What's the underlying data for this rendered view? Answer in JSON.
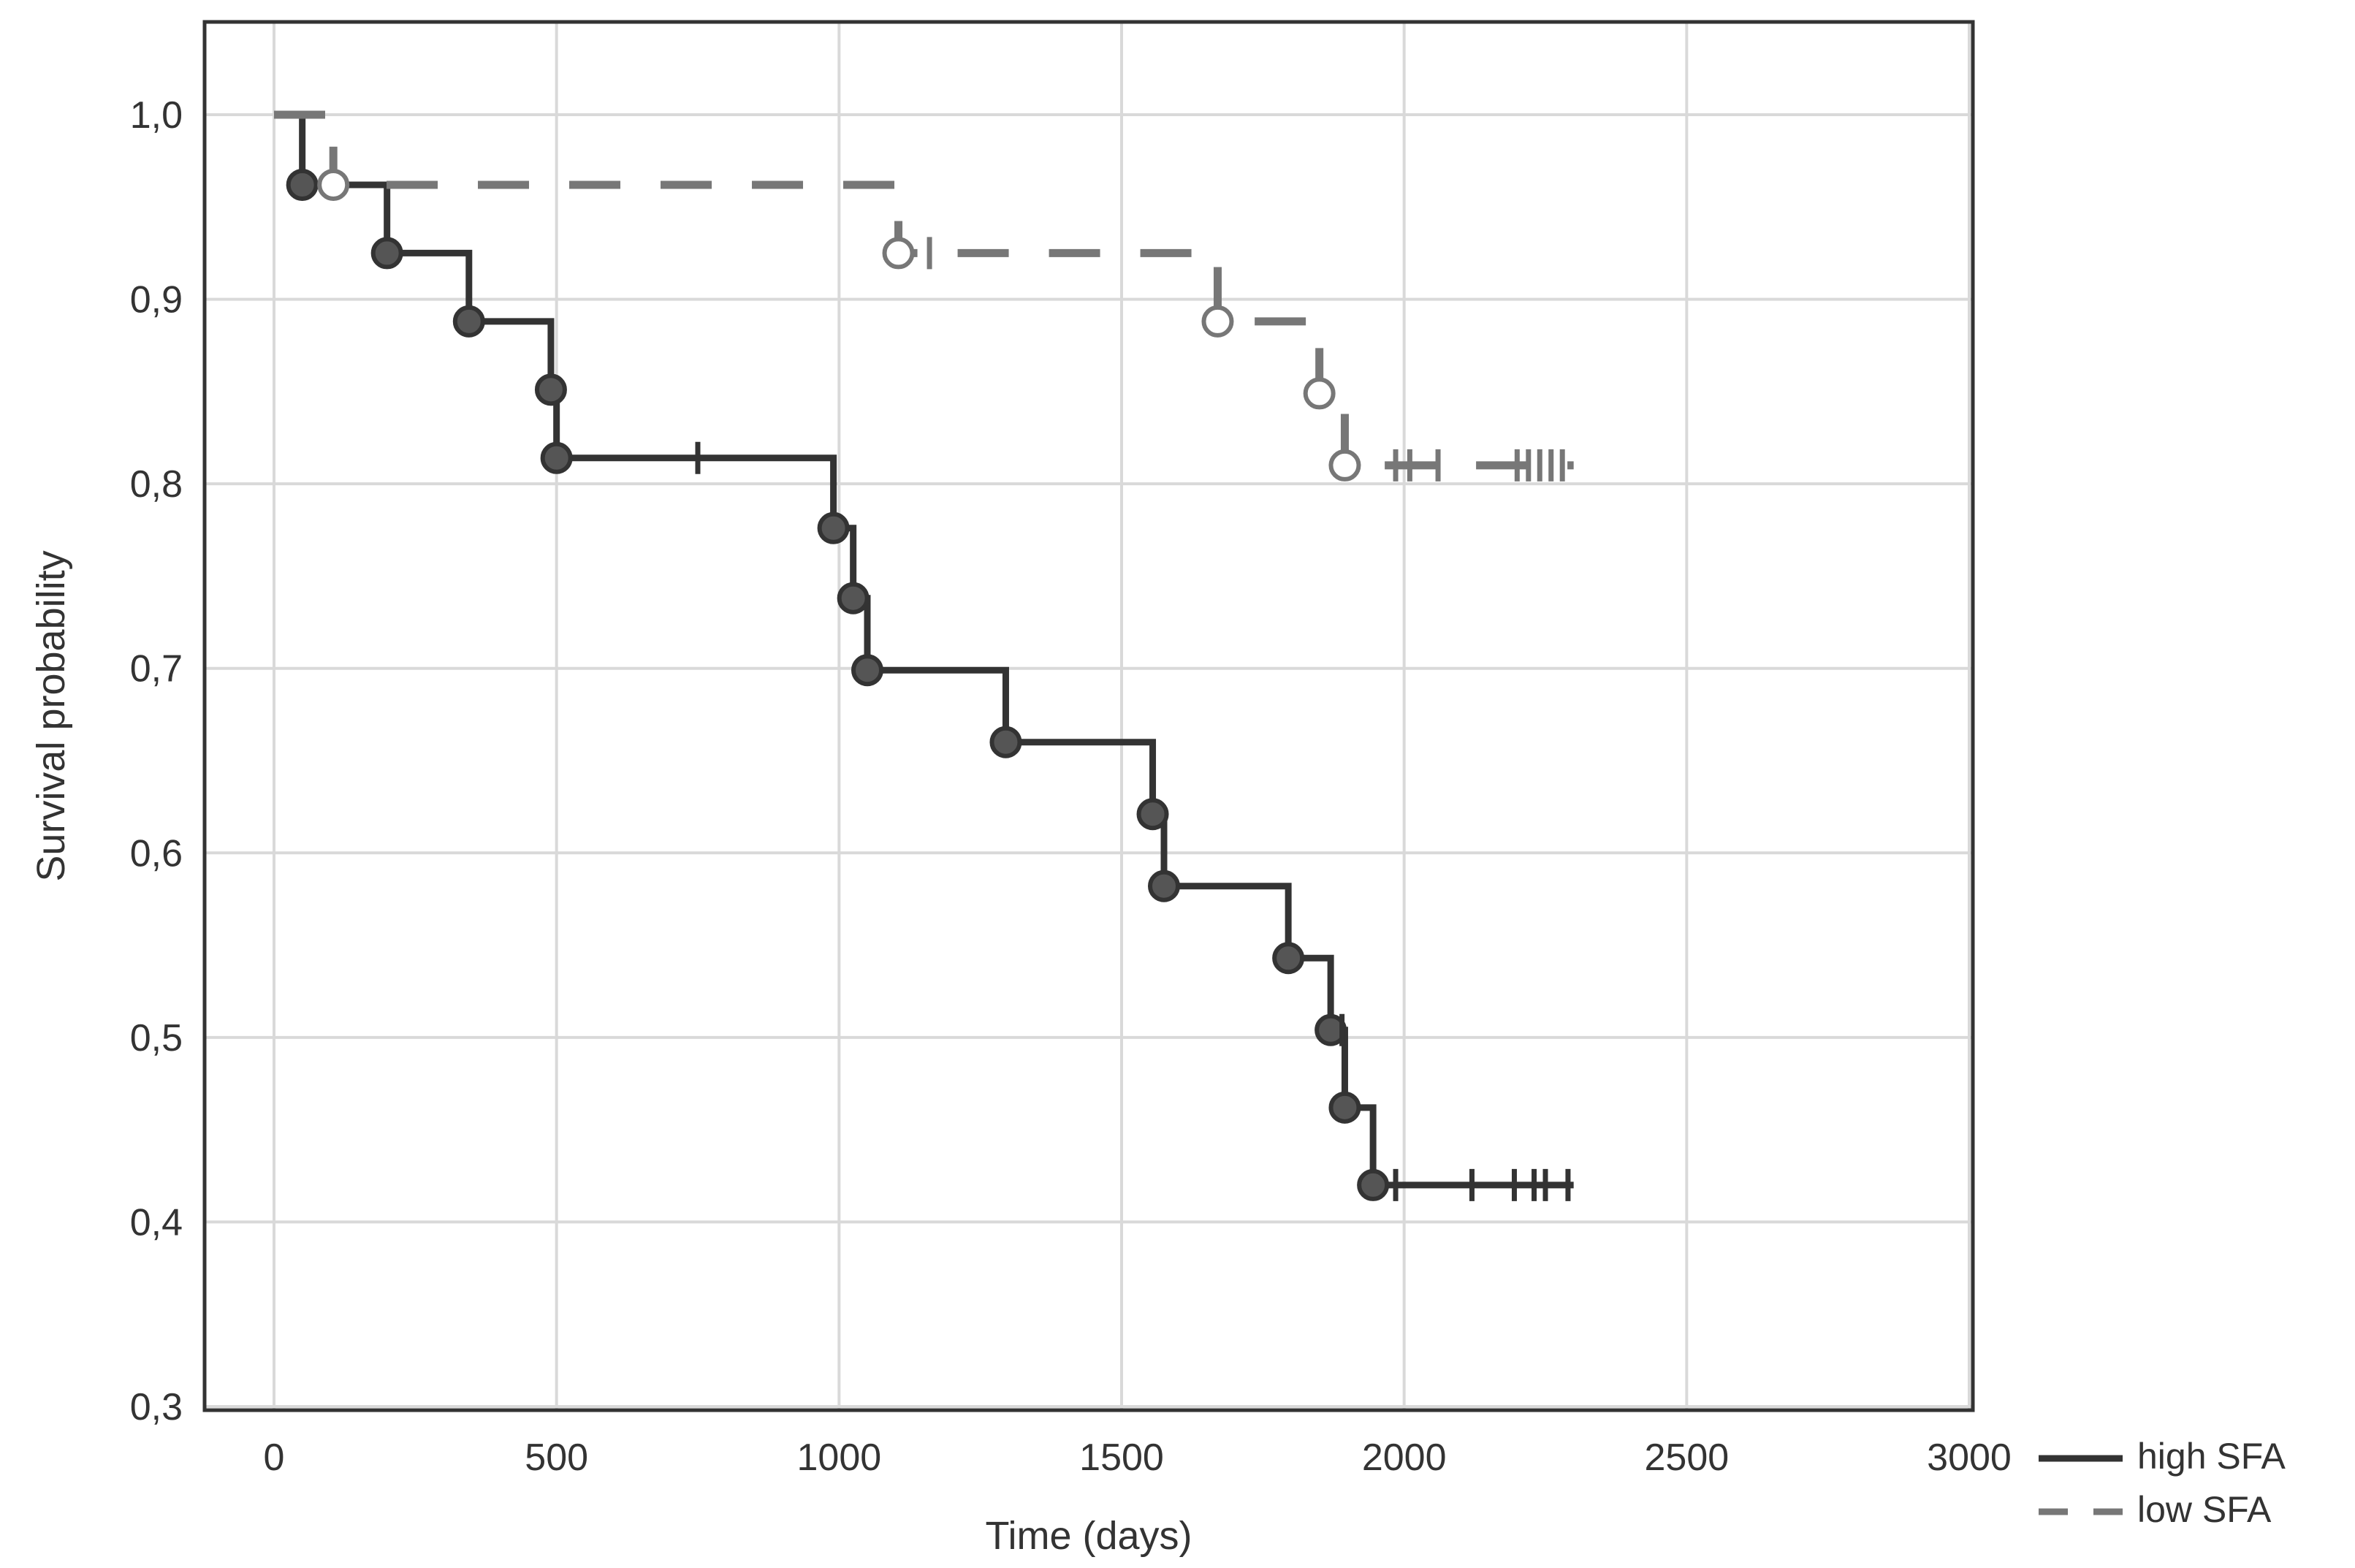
{
  "chart_data": {
    "type": "line",
    "subtype": "kaplan-meier step",
    "xlabel": "Time (days)",
    "ylabel": "Survival probability",
    "xlim": [
      0,
      3000
    ],
    "ylim": [
      0.3,
      1.0
    ],
    "x_ticks": [
      "0",
      "500",
      "1000",
      "1500",
      "2000",
      "2500",
      "3000"
    ],
    "y_ticks": [
      "0,3",
      "0,4",
      "0,5",
      "0,6",
      "0,7",
      "0,8",
      "0,9",
      "1,0"
    ],
    "grid": true,
    "legend_position": "bottom-right outside plot",
    "series": [
      {
        "name": "high SFA",
        "style": "solid",
        "color": "#333333",
        "marker": "filled circle",
        "steps": [
          [
            0,
            1.0
          ],
          [
            50,
            0.962
          ],
          [
            200,
            0.925
          ],
          [
            345,
            0.888
          ],
          [
            490,
            0.851
          ],
          [
            500,
            0.814
          ],
          [
            990,
            0.776
          ],
          [
            1025,
            0.738
          ],
          [
            1050,
            0.699
          ],
          [
            1295,
            0.66
          ],
          [
            1555,
            0.621
          ],
          [
            1575,
            0.582
          ],
          [
            1795,
            0.543
          ],
          [
            1870,
            0.504
          ],
          [
            1895,
            0.462
          ],
          [
            1945,
            0.42
          ]
        ],
        "end_x": 2300,
        "events": [
          [
            50,
            0.962
          ],
          [
            200,
            0.925
          ],
          [
            345,
            0.888
          ],
          [
            490,
            0.851
          ],
          [
            500,
            0.814
          ],
          [
            990,
            0.776
          ],
          [
            1025,
            0.738
          ],
          [
            1050,
            0.699
          ],
          [
            1295,
            0.66
          ],
          [
            1555,
            0.621
          ],
          [
            1575,
            0.582
          ],
          [
            1795,
            0.543
          ],
          [
            1870,
            0.504
          ],
          [
            1895,
            0.462
          ],
          [
            1945,
            0.42
          ]
        ],
        "censored": [
          [
            750,
            0.814
          ],
          [
            1890,
            0.504
          ],
          [
            1985,
            0.42
          ],
          [
            2120,
            0.42
          ],
          [
            2195,
            0.42
          ],
          [
            2230,
            0.42
          ],
          [
            2250,
            0.42
          ],
          [
            2290,
            0.42
          ]
        ]
      },
      {
        "name": "low SFA",
        "style": "dashed",
        "color": "#777777",
        "marker": "open circle",
        "steps": [
          [
            0,
            1.0
          ],
          [
            105,
            0.962
          ],
          [
            1105,
            0.925
          ],
          [
            1670,
            0.888
          ],
          [
            1850,
            0.849
          ],
          [
            1895,
            0.81
          ]
        ],
        "end_x": 2300,
        "events": [
          [
            105,
            0.962
          ],
          [
            1105,
            0.925
          ],
          [
            1670,
            0.888
          ],
          [
            1850,
            0.849
          ],
          [
            1895,
            0.81
          ]
        ],
        "censored": [
          [
            1160,
            0.925
          ],
          [
            1985,
            0.81
          ],
          [
            2010,
            0.81
          ],
          [
            2060,
            0.81
          ],
          [
            2200,
            0.81
          ],
          [
            2220,
            0.81
          ],
          [
            2240,
            0.81
          ],
          [
            2260,
            0.81
          ],
          [
            2280,
            0.81
          ]
        ]
      }
    ]
  }
}
